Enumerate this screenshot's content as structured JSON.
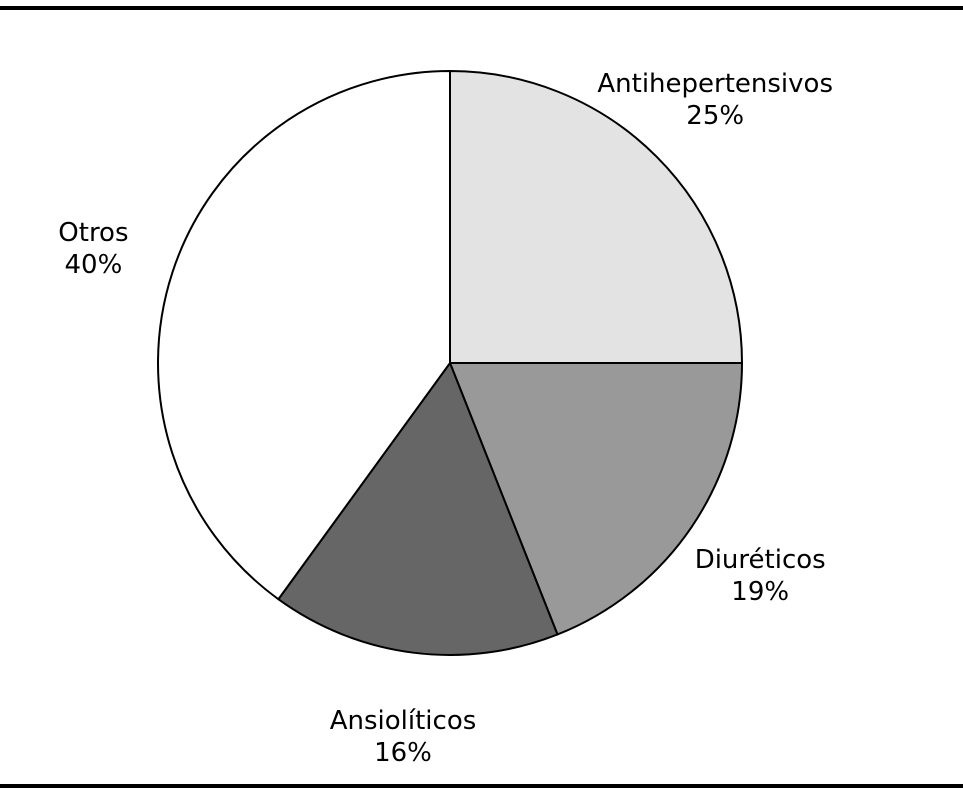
{
  "chart_data": {
    "type": "pie",
    "slices": [
      {
        "label": "Antihepertensivos",
        "value": 25,
        "value_label": "25%",
        "color": "#e3e3e3"
      },
      {
        "label": "Diuréticos",
        "value": 19,
        "value_label": "19%",
        "color": "#999999"
      },
      {
        "label": "Ansiolíticos",
        "value": 16,
        "value_label": "16%",
        "color": "#666666"
      },
      {
        "label": "Otros",
        "value": 40,
        "value_label": "40%",
        "color": "#ffffff"
      }
    ],
    "start_angle": "top",
    "direction": "clockwise",
    "legend": "none",
    "title": ""
  }
}
